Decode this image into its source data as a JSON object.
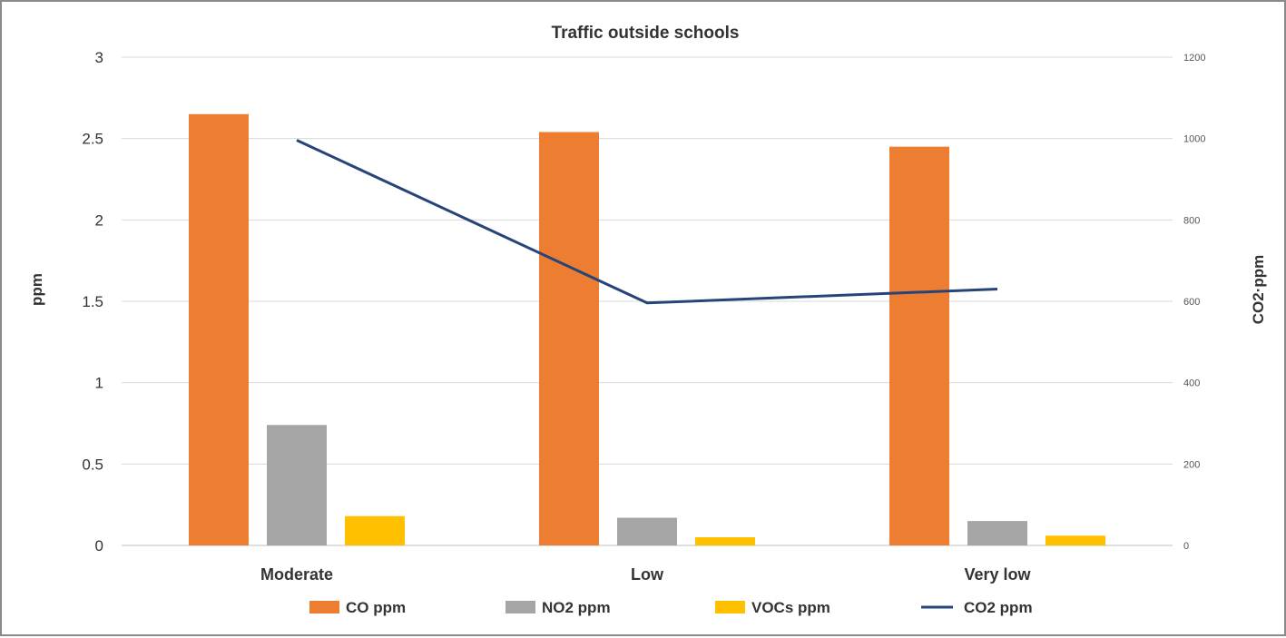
{
  "chart_data": {
    "type": "bar",
    "title": "Traffic outside schools",
    "categories": [
      "Moderate",
      "Low",
      "Very low"
    ],
    "series": [
      {
        "name": "CO ppm",
        "axis": "left",
        "kind": "bar",
        "color": "#ED7D31",
        "values": [
          2.65,
          2.54,
          2.45
        ]
      },
      {
        "name": "NO2 ppm",
        "axis": "left",
        "kind": "bar",
        "color": "#A5A5A5",
        "values": [
          0.74,
          0.17,
          0.15
        ]
      },
      {
        "name": "VOCs ppm",
        "axis": "left",
        "kind": "bar",
        "color": "#FFC000",
        "values": [
          0.18,
          0.05,
          0.06
        ]
      },
      {
        "name": "CO2 ppm",
        "axis": "right",
        "kind": "line",
        "color": "#264478",
        "values": [
          996,
          596,
          630
        ]
      }
    ],
    "ylabel": "ppm",
    "y2label": "CO2·ppm",
    "ylim": [
      0,
      3
    ],
    "y2lim": [
      0,
      1200
    ],
    "yticks": [
      "0",
      "0.5",
      "1",
      "1.5",
      "2",
      "2.5",
      "3"
    ],
    "y2ticks": [
      "0",
      "200",
      "400",
      "600",
      "800",
      "1000",
      "1200"
    ],
    "grid": true,
    "legend": "bottom"
  }
}
